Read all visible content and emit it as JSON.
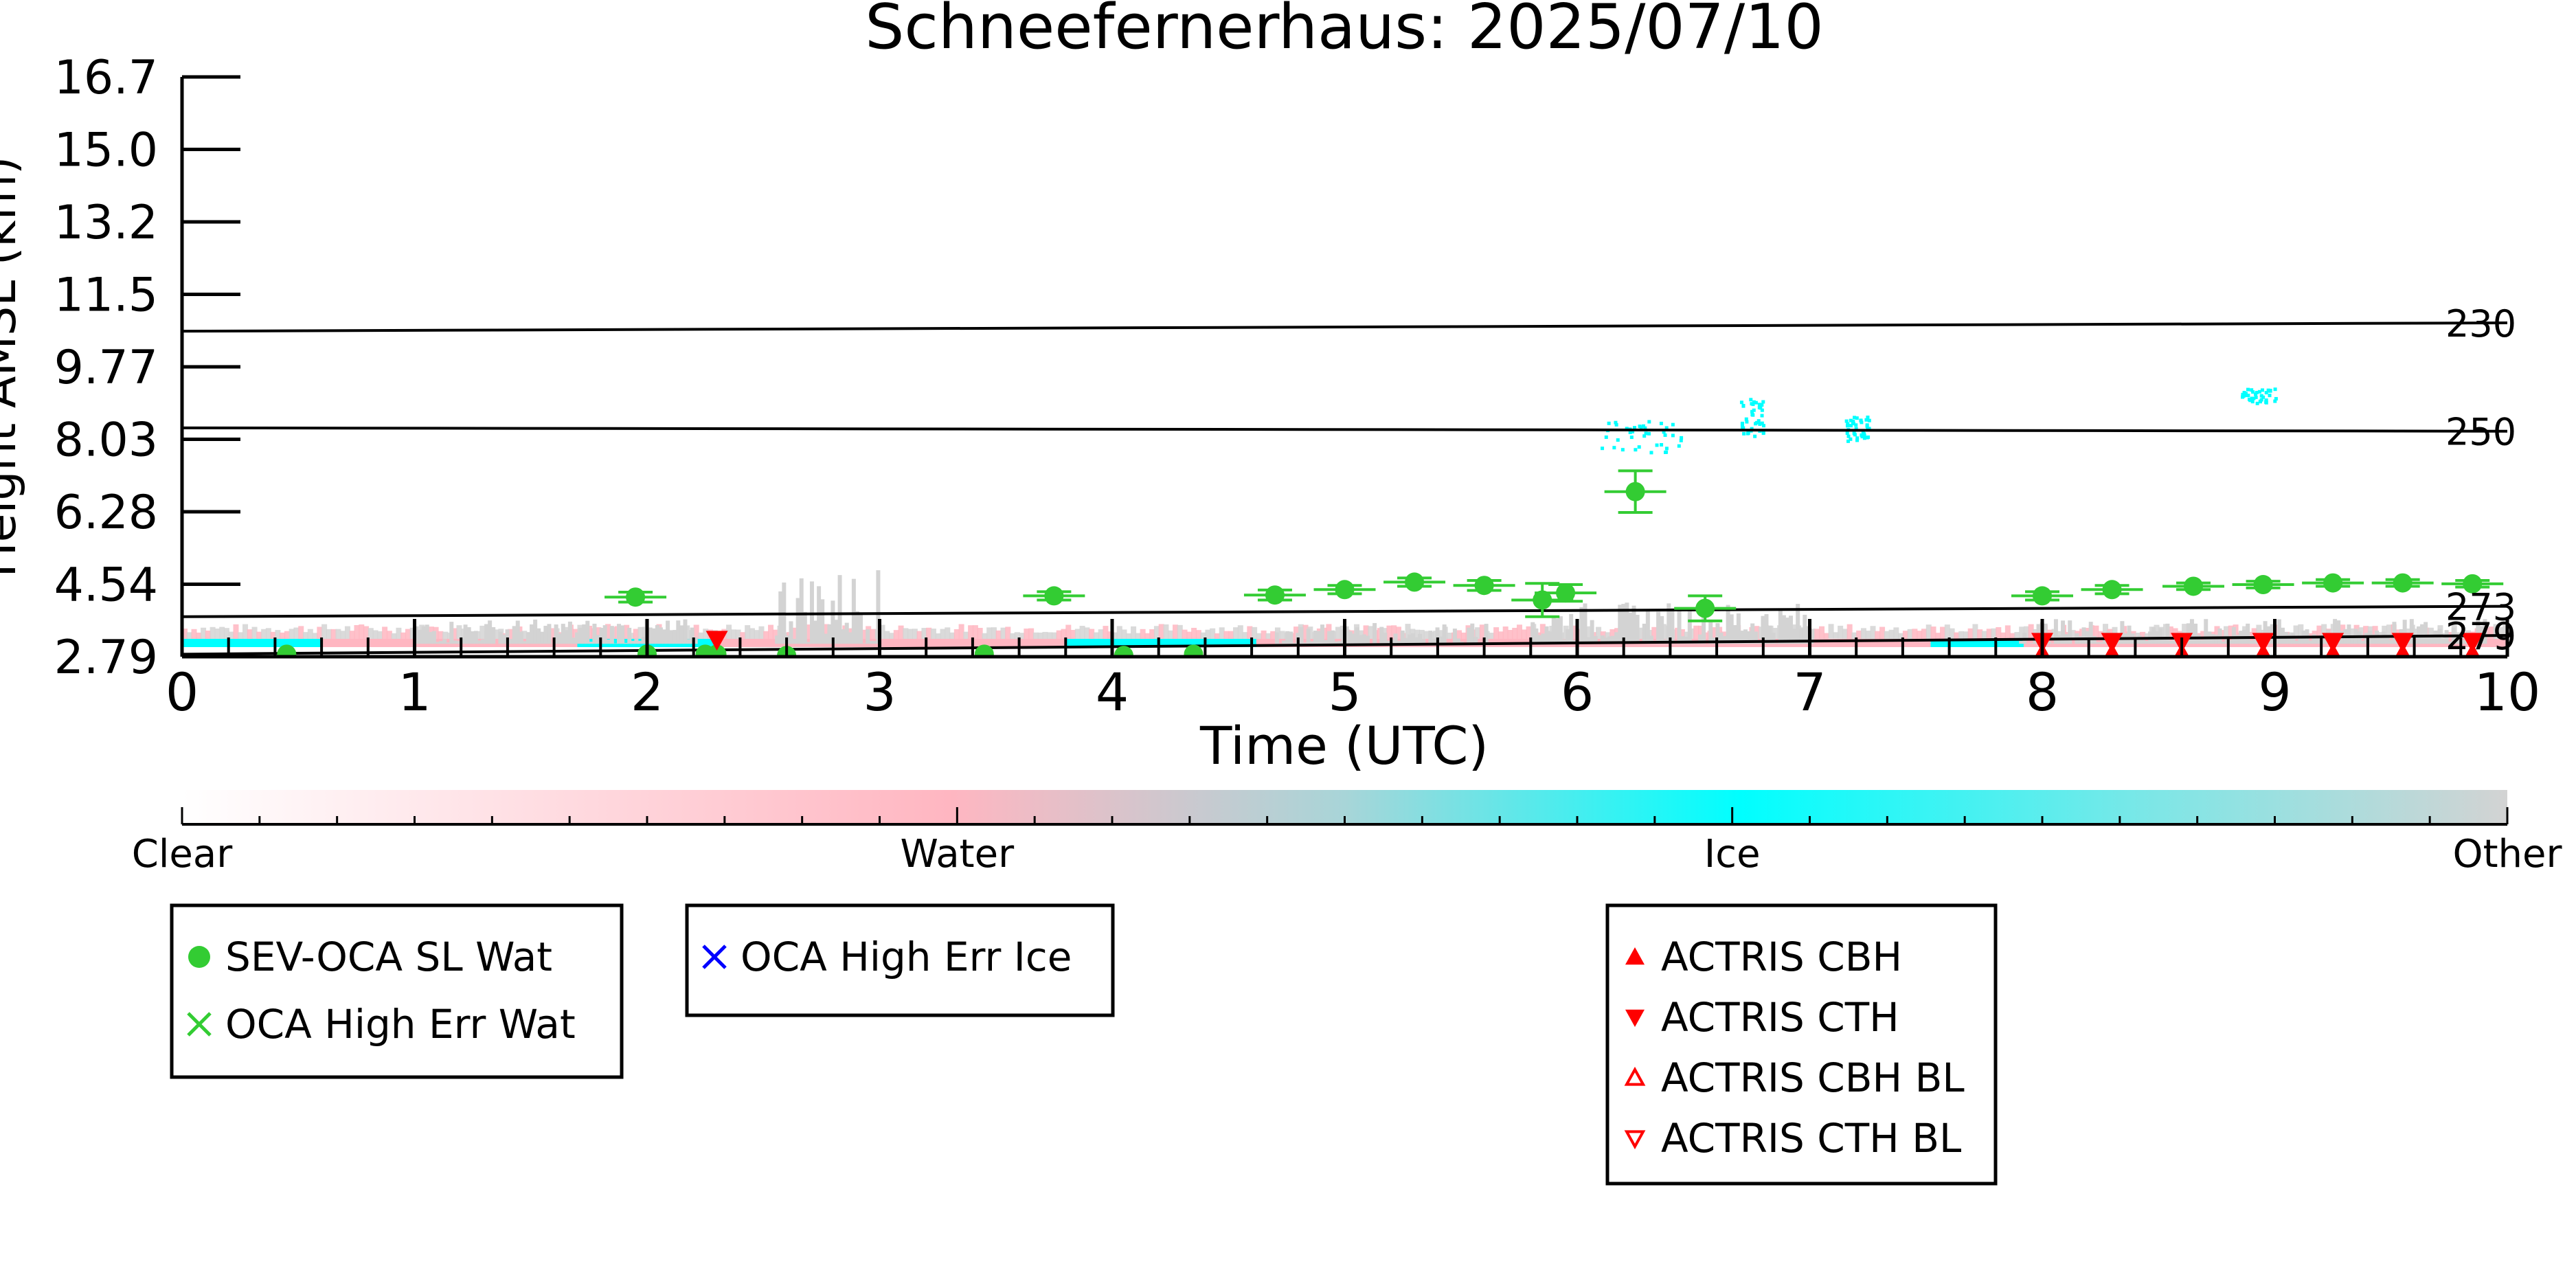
{
  "chart_data": {
    "type": "scatter",
    "title": "Schneefernerhaus: 2025/07/10",
    "xlabel": "Time (UTC)",
    "ylabel": "Height AMSL (km)",
    "xlim": [
      0,
      10
    ],
    "ylim": [
      2.79,
      16.7
    ],
    "x_ticks": [
      "0",
      "1",
      "2",
      "3",
      "4",
      "5",
      "6",
      "7",
      "8",
      "9",
      "10"
    ],
    "y_ticks": [
      "2.79",
      "4.54",
      "6.28",
      "8.03",
      "9.77",
      "11.5",
      "13.2",
      "15.0",
      "16.7"
    ],
    "grid": false,
    "isotherms": [
      {
        "label": "230",
        "y_start": 10.6,
        "y_end": 10.8
      },
      {
        "label": "250",
        "y_start": 8.28,
        "y_end": 8.2
      },
      {
        "label": "273",
        "y_start": 3.75,
        "y_end": 4.0
      },
      {
        "label": "279",
        "y_start": 2.85,
        "y_end": 3.3
      }
    ],
    "colorbar": {
      "labels": [
        "Clear",
        "Water",
        "Ice",
        "Other"
      ],
      "colors": [
        "#ffffff",
        "#ffb6c1",
        "#00ffff",
        "#d3d3d3"
      ]
    },
    "series": [
      {
        "name": "SEV-OCA SL Wat",
        "color": "#33cc33",
        "points": [
          {
            "x": 0.45,
            "y": 2.85
          },
          {
            "x": 2.0,
            "y": 2.85
          },
          {
            "x": 2.3,
            "y": 2.85
          },
          {
            "x": 2.25,
            "y": 2.85
          },
          {
            "x": 2.6,
            "y": 2.82
          },
          {
            "x": 3.45,
            "y": 2.85
          },
          {
            "x": 4.05,
            "y": 2.82
          },
          {
            "x": 4.35,
            "y": 2.85
          },
          {
            "x": 1.95,
            "y": 4.22,
            "err": 0.12
          },
          {
            "x": 3.75,
            "y": 4.25,
            "err": 0.1
          },
          {
            "x": 4.7,
            "y": 4.27,
            "err": 0.12
          },
          {
            "x": 5.0,
            "y": 4.4,
            "err": 0.1
          },
          {
            "x": 5.3,
            "y": 4.58,
            "err": 0.1
          },
          {
            "x": 5.6,
            "y": 4.5,
            "err": 0.12
          },
          {
            "x": 5.95,
            "y": 4.32,
            "err": 0.2
          },
          {
            "x": 6.25,
            "y": 6.75,
            "err": 0.5
          },
          {
            "x": 6.55,
            "y": 3.95,
            "err": 0.3
          },
          {
            "x": 5.85,
            "y": 4.15,
            "err": 0.4
          },
          {
            "x": 8.0,
            "y": 4.25,
            "err": 0.1
          },
          {
            "x": 8.3,
            "y": 4.4,
            "err": 0.1
          },
          {
            "x": 8.65,
            "y": 4.48,
            "err": 0.08
          },
          {
            "x": 8.95,
            "y": 4.52,
            "err": 0.08
          },
          {
            "x": 9.25,
            "y": 4.56,
            "err": 0.08
          },
          {
            "x": 9.55,
            "y": 4.56,
            "err": 0.08
          },
          {
            "x": 9.85,
            "y": 4.54,
            "err": 0.08
          }
        ]
      },
      {
        "name": "OCA High Err Wat",
        "color": "#33cc33",
        "points": []
      },
      {
        "name": "OCA High Err Ice",
        "color": "#0000ff",
        "points": []
      },
      {
        "name": "ACTRIS CBH",
        "color": "#ff0000",
        "points": [
          {
            "x": 8.0,
            "y": 2.85
          },
          {
            "x": 8.3,
            "y": 2.85
          },
          {
            "x": 8.6,
            "y": 2.85
          },
          {
            "x": 8.95,
            "y": 2.85
          },
          {
            "x": 9.25,
            "y": 2.85
          },
          {
            "x": 9.55,
            "y": 2.85
          },
          {
            "x": 9.85,
            "y": 2.85
          }
        ]
      },
      {
        "name": "ACTRIS CTH",
        "color": "#ff0000",
        "points": [
          {
            "x": 2.3,
            "y": 3.2
          },
          {
            "x": 8.0,
            "y": 3.15
          },
          {
            "x": 8.3,
            "y": 3.15
          },
          {
            "x": 8.6,
            "y": 3.15
          },
          {
            "x": 8.95,
            "y": 3.15
          },
          {
            "x": 9.25,
            "y": 3.15
          },
          {
            "x": 9.55,
            "y": 3.15
          },
          {
            "x": 9.85,
            "y": 3.15
          }
        ]
      },
      {
        "name": "ACTRIS CBH BL",
        "color": "#ff0000",
        "points": []
      },
      {
        "name": "ACTRIS CTH BL",
        "color": "#ff0000",
        "points": []
      }
    ],
    "legend_boxes": [
      {
        "placement": "bottom-left",
        "entries": [
          {
            "marker": "filled-circle",
            "color": "#33cc33",
            "label": "SEV-OCA SL Wat"
          },
          {
            "marker": "x",
            "color": "#33cc33",
            "label": "OCA High Err Wat"
          }
        ]
      },
      {
        "placement": "bottom-left-center",
        "entries": [
          {
            "marker": "x",
            "color": "#0000ff",
            "label": "OCA High Err Ice"
          }
        ]
      },
      {
        "placement": "bottom-right-center",
        "entries": [
          {
            "marker": "triangle-up",
            "color": "#ff0000",
            "label": "ACTRIS CBH"
          },
          {
            "marker": "triangle-down",
            "color": "#ff0000",
            "label": "ACTRIS CTH"
          },
          {
            "marker": "triangle-up-open",
            "color": "#ff0000",
            "label": "ACTRIS CBH BL"
          },
          {
            "marker": "triangle-down-open",
            "color": "#ff0000",
            "label": "ACTRIS CTH BL"
          }
        ]
      }
    ]
  }
}
